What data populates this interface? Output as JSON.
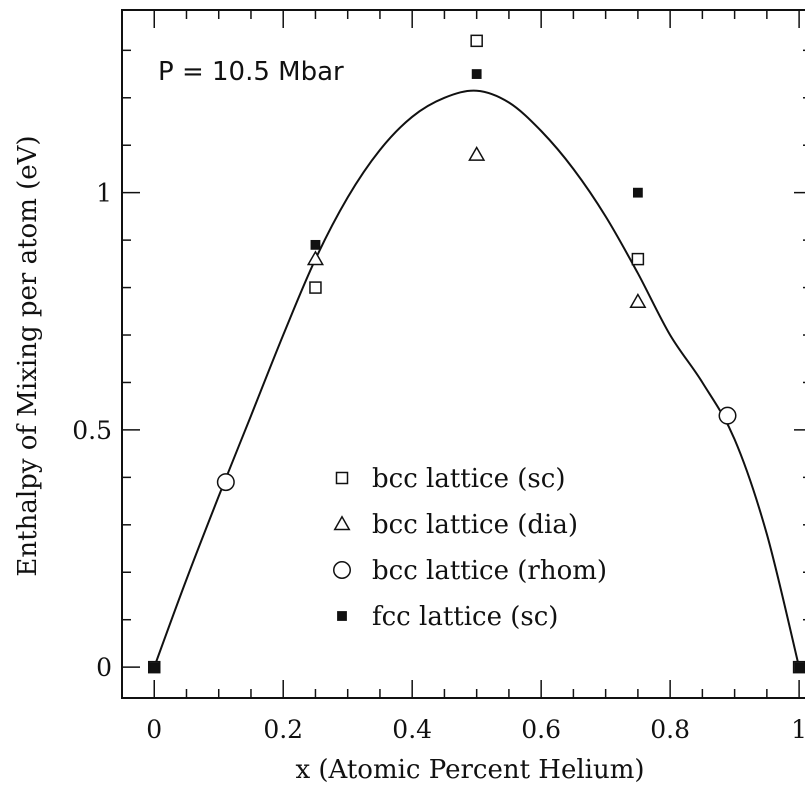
{
  "chart_data": {
    "type": "scatter",
    "title": "",
    "annotation": "P = 10.5 Mbar",
    "xlabel": "x (Atomic Percent Helium)",
    "ylabel": "Enthalpy of Mixing per atom (eV)",
    "xlim": [
      -0.05,
      1.02
    ],
    "ylim": [
      -0.065,
      1.385
    ],
    "x_ticks": [
      0,
      0.2,
      0.4,
      0.6,
      0.8,
      1
    ],
    "x_tick_labels": [
      "0",
      "0.2",
      "0.4",
      "0.6",
      "0.8",
      "1"
    ],
    "y_ticks": [
      0,
      0.5,
      1
    ],
    "y_tick_labels": [
      "0",
      "0.5",
      "1"
    ],
    "grid": false,
    "legend_placement": "lower-center",
    "series": [
      {
        "name": "bcc lattice (sc)",
        "marker": "open-square",
        "points": [
          [
            0.0,
            0.0
          ],
          [
            0.25,
            0.8
          ],
          [
            0.5,
            1.32
          ],
          [
            0.75,
            0.86
          ],
          [
            1.0,
            0.0
          ]
        ]
      },
      {
        "name": "bcc lattice (dia)",
        "marker": "open-triangle",
        "points": [
          [
            0.25,
            0.86
          ],
          [
            0.5,
            1.08
          ],
          [
            0.75,
            0.77
          ]
        ]
      },
      {
        "name": "bcc lattice (rhom)",
        "marker": "open-circle",
        "points": [
          [
            0.111,
            0.39
          ],
          [
            0.889,
            0.53
          ]
        ]
      },
      {
        "name": "fcc lattice (sc)",
        "marker": "filled-square",
        "points": [
          [
            0.0,
            0.0
          ],
          [
            0.25,
            0.89
          ],
          [
            0.5,
            1.25
          ],
          [
            0.75,
            1.0
          ],
          [
            1.0,
            0.0
          ]
        ]
      }
    ],
    "fit_curve": {
      "description": "smooth fit",
      "points": [
        [
          0.0,
          0.0
        ],
        [
          0.05,
          0.185
        ],
        [
          0.1,
          0.36
        ],
        [
          0.15,
          0.53
        ],
        [
          0.2,
          0.7
        ],
        [
          0.25,
          0.86
        ],
        [
          0.3,
          0.99
        ],
        [
          0.35,
          1.09
        ],
        [
          0.4,
          1.16
        ],
        [
          0.45,
          1.2
        ],
        [
          0.5,
          1.215
        ],
        [
          0.55,
          1.19
        ],
        [
          0.6,
          1.13
        ],
        [
          0.65,
          1.05
        ],
        [
          0.7,
          0.95
        ],
        [
          0.75,
          0.83
        ],
        [
          0.8,
          0.7
        ],
        [
          0.85,
          0.6
        ],
        [
          0.9,
          0.48
        ],
        [
          0.95,
          0.28
        ],
        [
          1.0,
          0.0
        ]
      ]
    }
  }
}
